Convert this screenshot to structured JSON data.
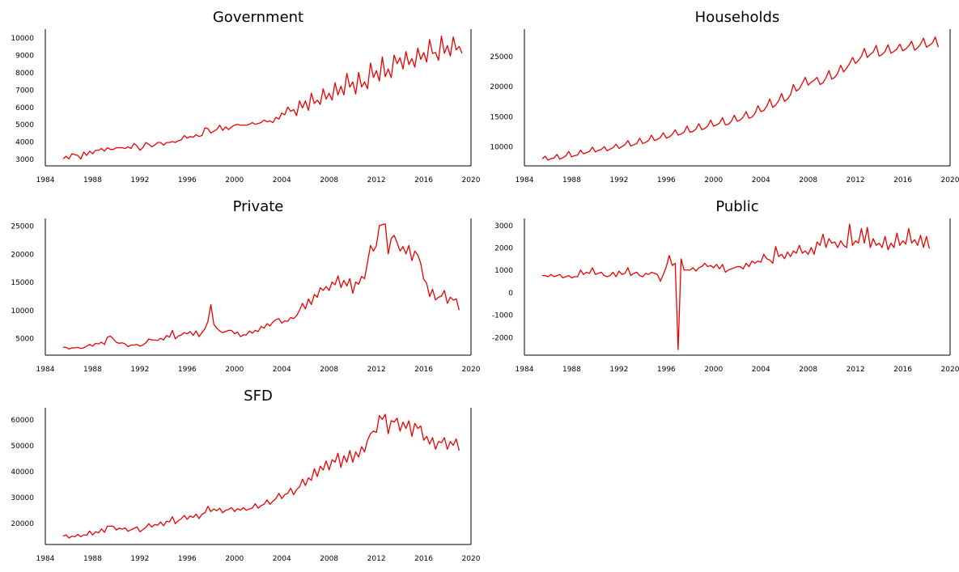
{
  "style": {
    "line_color": "#ee0000",
    "background": "#ffffff",
    "grid": false,
    "x_start_year": 1985.5,
    "x_step_year": 0.25
  },
  "chart_data": [
    {
      "type": "line",
      "title": "Government",
      "xlabel": "",
      "ylabel": "",
      "xlim": [
        1984,
        2020
      ],
      "ylim": [
        2600,
        10500
      ],
      "xticks": [
        1984,
        1988,
        1992,
        1996,
        2000,
        2004,
        2008,
        2012,
        2016,
        2020
      ],
      "yticks": [
        3000,
        4000,
        5000,
        6000,
        7000,
        8000,
        9000,
        10000
      ],
      "series": [
        {
          "values": [
            3000,
            3150,
            3000,
            3300,
            3250,
            3200,
            3000,
            3400,
            3200,
            3450,
            3300,
            3500,
            3500,
            3600,
            3450,
            3650,
            3550,
            3550,
            3650,
            3650,
            3650,
            3600,
            3700,
            3600,
            3900,
            3750,
            3500,
            3650,
            3950,
            3850,
            3700,
            3800,
            3950,
            3950,
            3800,
            3950,
            3950,
            4000,
            3950,
            4050,
            4100,
            4350,
            4200,
            4300,
            4250,
            4400,
            4300,
            4350,
            4800,
            4750,
            4500,
            4600,
            4700,
            4950,
            4650,
            4850,
            4700,
            4850,
            4950,
            5000,
            4950,
            4950,
            4950,
            5000,
            5100,
            5000,
            5050,
            5100,
            5250,
            5150,
            5200,
            5100,
            5400,
            5300,
            5650,
            5550,
            6000,
            5750,
            5850,
            5500,
            6350,
            5950,
            6350,
            5800,
            6800,
            6200,
            6400,
            6150,
            7050,
            6450,
            6800,
            6400,
            7400,
            6700,
            7200,
            6700,
            7950,
            7150,
            7450,
            6750,
            8000,
            7150,
            7450,
            7050,
            8550,
            7700,
            8100,
            7500,
            8900,
            7750,
            8200,
            7700,
            9000,
            8500,
            8850,
            8200,
            9200,
            8450,
            8800,
            8300,
            9400,
            8750,
            9150,
            8600,
            9900,
            9100,
            9150,
            8700,
            10100,
            9100,
            9550,
            8950,
            10050,
            9300,
            9500,
            9100
          ]
        }
      ]
    },
    {
      "type": "line",
      "title": "Households",
      "xlabel": "",
      "ylabel": "",
      "xlim": [
        1984,
        2020
      ],
      "ylim": [
        6800,
        29500
      ],
      "xticks": [
        1984,
        1988,
        1992,
        1996,
        2000,
        2004,
        2008,
        2012,
        2016,
        2020
      ],
      "yticks": [
        10000,
        15000,
        20000,
        25000
      ],
      "series": [
        {
          "values": [
            7950,
            8400,
            7750,
            8000,
            8100,
            8700,
            7900,
            8150,
            8450,
            9200,
            8300,
            8500,
            8600,
            9400,
            8800,
            9000,
            9200,
            9900,
            9100,
            9400,
            9500,
            10000,
            9300,
            9600,
            9800,
            10400,
            9700,
            10000,
            10300,
            11000,
            10100,
            10300,
            10500,
            11400,
            10500,
            10700,
            11000,
            11900,
            11000,
            11200,
            11500,
            12300,
            11400,
            11600,
            12000,
            12800,
            11900,
            12100,
            12400,
            13400,
            12400,
            12500,
            12900,
            13800,
            12800,
            13000,
            13400,
            14400,
            13400,
            13600,
            13900,
            14800,
            13600,
            13700,
            14200,
            15200,
            14200,
            14400,
            14900,
            15800,
            14700,
            14900,
            15500,
            16800,
            15800,
            16000,
            16700,
            17900,
            16500,
            16900,
            17600,
            18800,
            17500,
            17900,
            18600,
            20300,
            19200,
            19600,
            20500,
            21500,
            20200,
            20700,
            21000,
            21500,
            20300,
            20600,
            21400,
            22600,
            21200,
            21500,
            22200,
            23500,
            22400,
            23000,
            23800,
            24800,
            23800,
            24300,
            25000,
            26300,
            24800,
            25300,
            25700,
            26800,
            25000,
            25300,
            25800,
            26900,
            25500,
            25800,
            26200,
            27000,
            25900,
            26200,
            26700,
            27500,
            26000,
            26400,
            27000,
            28000,
            26500,
            26800,
            27200,
            28200,
            26500
          ]
        }
      ]
    },
    {
      "type": "line",
      "title": "Private",
      "xlabel": "",
      "ylabel": "",
      "xlim": [
        1984,
        2020
      ],
      "ylim": [
        2000,
        26300
      ],
      "xticks": [
        1984,
        1988,
        1992,
        1996,
        2000,
        2004,
        2008,
        2012,
        2016,
        2020
      ],
      "yticks": [
        5000,
        10000,
        15000,
        20000,
        25000
      ],
      "series": [
        {
          "values": [
            3400,
            3400,
            3100,
            3300,
            3300,
            3400,
            3200,
            3300,
            3600,
            3900,
            3600,
            4100,
            4000,
            4300,
            3900,
            5200,
            5400,
            4900,
            4300,
            4100,
            4200,
            4000,
            3500,
            3800,
            3800,
            3900,
            3600,
            3800,
            4200,
            4900,
            4700,
            4700,
            4600,
            5000,
            4700,
            5500,
            5200,
            6400,
            4900,
            5400,
            5600,
            6000,
            5800,
            6200,
            5500,
            6300,
            5300,
            6000,
            6700,
            8000,
            11000,
            7500,
            6800,
            6300,
            6000,
            6200,
            6400,
            6400,
            5800,
            6100,
            5300,
            5600,
            5600,
            6300,
            5900,
            6400,
            6200,
            7100,
            6800,
            7600,
            7200,
            7900,
            8300,
            8500,
            7700,
            8100,
            8000,
            8700,
            8500,
            9000,
            10000,
            11200,
            10200,
            12000,
            11000,
            12800,
            12300,
            14000,
            13500,
            14200,
            13500,
            15000,
            14500,
            16100,
            14000,
            15300,
            14300,
            15600,
            13000,
            15000,
            14600,
            16000,
            15600,
            18500,
            21500,
            20500,
            21500,
            25000,
            25200,
            25300,
            20000,
            22700,
            23300,
            22000,
            20500,
            21300,
            20000,
            21500,
            18800,
            20500,
            19800,
            18300,
            15500,
            14800,
            12400,
            13700,
            11800,
            12300,
            12500,
            13500,
            11200,
            12300,
            11800,
            12000,
            10000
          ]
        }
      ]
    },
    {
      "type": "line",
      "title": "Public",
      "xlabel": "",
      "ylabel": "",
      "xlim": [
        1984,
        2020
      ],
      "ylim": [
        -2800,
        3300
      ],
      "xticks": [
        1984,
        1988,
        1992,
        1996,
        2000,
        2004,
        2008,
        2012,
        2016,
        2020
      ],
      "yticks": [
        -2000,
        -1000,
        0,
        1000,
        2000,
        3000
      ],
      "series": [
        {
          "values": [
            750,
            750,
            700,
            800,
            700,
            750,
            800,
            650,
            700,
            750,
            650,
            700,
            700,
            1000,
            800,
            900,
            850,
            1100,
            800,
            850,
            900,
            750,
            700,
            750,
            900,
            700,
            950,
            800,
            850,
            1100,
            750,
            850,
            900,
            750,
            700,
            850,
            800,
            900,
            850,
            800,
            500,
            800,
            1150,
            1650,
            1200,
            1300,
            -2550,
            1500,
            1000,
            1000,
            1000,
            1100,
            950,
            1100,
            1150,
            1300,
            1150,
            1200,
            1100,
            1250,
            1050,
            1250,
            900,
            1000,
            1050,
            1100,
            1150,
            1150,
            1050,
            1300,
            1150,
            1400,
            1300,
            1400,
            1350,
            1700,
            1500,
            1450,
            1300,
            2050,
            1600,
            1700,
            1500,
            1800,
            1600,
            1850,
            1750,
            2100,
            1750,
            1850,
            1700,
            2000,
            1700,
            2250,
            2100,
            2600,
            2000,
            2400,
            2200,
            2250,
            2000,
            2300,
            2100,
            2000,
            3050,
            2100,
            2300,
            2200,
            2850,
            2200,
            2900,
            2000,
            2400,
            2100,
            2200,
            2000,
            2500,
            1900,
            2200,
            2000,
            2650,
            2100,
            2300,
            2150,
            2850,
            2200,
            2350,
            2100,
            2550,
            2000,
            2500,
            1950
          ]
        }
      ]
    },
    {
      "type": "line",
      "title": "SFD",
      "xlabel": "",
      "ylabel": "",
      "xlim": [
        1984,
        2020
      ],
      "ylim": [
        11800,
        64500
      ],
      "xticks": [
        1984,
        1988,
        1992,
        1996,
        2000,
        2004,
        2008,
        2012,
        2016,
        2020
      ],
      "yticks": [
        20000,
        30000,
        40000,
        50000,
        60000
      ],
      "series": [
        {
          "values": [
            15000,
            15500,
            14300,
            15000,
            14800,
            15700,
            14800,
            15500,
            15400,
            17000,
            15500,
            16700,
            16300,
            17800,
            16500,
            18900,
            18900,
            18800,
            17400,
            18100,
            17700,
            18200,
            16900,
            17500,
            18000,
            18600,
            16700,
            17500,
            18400,
            19800,
            18500,
            19500,
            19200,
            20500,
            19000,
            20800,
            20500,
            22500,
            19800,
            21000,
            21700,
            23000,
            21500,
            22800,
            22200,
            23500,
            21800,
            23500,
            24000,
            26500,
            24500,
            25500,
            24800,
            25800,
            24000,
            25000,
            25300,
            26000,
            24500,
            25600,
            25000,
            26000,
            25000,
            25500,
            25800,
            27500,
            25800,
            26800,
            27300,
            29000,
            27300,
            28500,
            29500,
            31500,
            29500,
            31000,
            31500,
            33500,
            31000,
            33000,
            34000,
            37000,
            34500,
            37500,
            36500,
            41000,
            38000,
            42000,
            40500,
            44000,
            40500,
            44500,
            43500,
            47000,
            41500,
            46000,
            43500,
            48000,
            43500,
            47500,
            45500,
            49500,
            47500,
            52000,
            54500,
            55500,
            55000,
            61500,
            60000,
            62000,
            54500,
            59500,
            59000,
            60500,
            55500,
            59000,
            56500,
            59500,
            53500,
            58500,
            56500,
            57500,
            52000,
            53500,
            50500,
            53000,
            48500,
            51500,
            51000,
            53000,
            48500,
            51500,
            50000,
            52500,
            48000
          ]
        }
      ]
    }
  ]
}
